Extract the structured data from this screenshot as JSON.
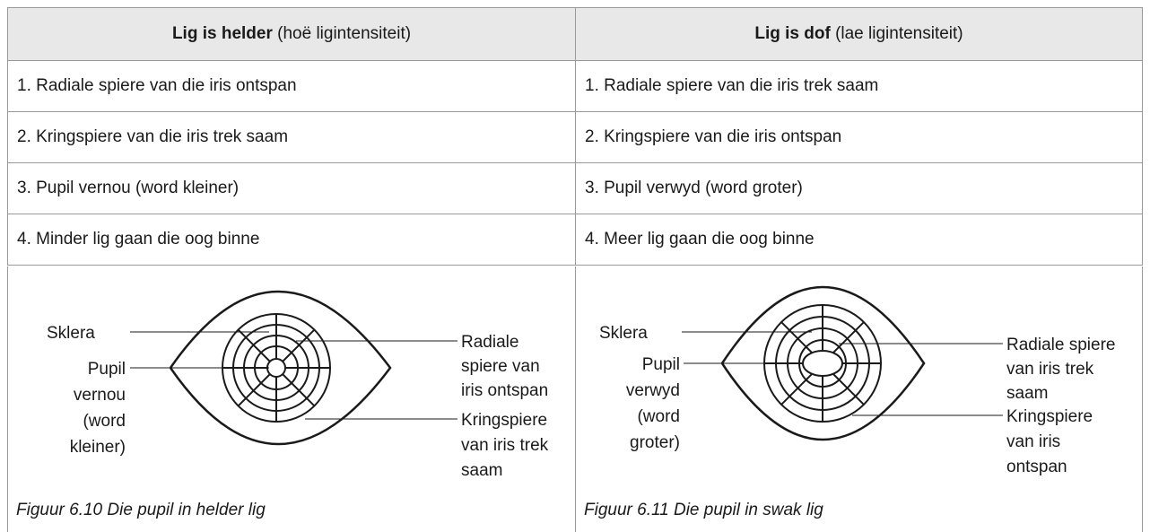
{
  "header": {
    "columns": [
      {
        "main": "Lig is helder",
        "note": "(hoë ligintensiteit)"
      },
      {
        "main": "Lig is dof",
        "note": "(lae ligintensiteit)"
      }
    ]
  },
  "table": {
    "rows": [
      [
        "1. Radiale spiere van die iris ontspan",
        "1. Radiale spiere van die iris trek saam"
      ],
      [
        "2. Kringspiere van die iris trek saam",
        "2. Kringspiere van die iris ontspan"
      ],
      [
        "3. Pupil vernou (word kleiner)",
        "3. Pupil verwyd (word groter)"
      ],
      [
        "4. Minder lig gaan die oog binne",
        "4. Meer lig gaan die oog binne"
      ]
    ]
  },
  "figures": [
    {
      "sklera": "Sklera",
      "pupil": [
        "Pupil",
        "vernou",
        "(word",
        "kleiner)"
      ],
      "radial": [
        "Radiale",
        "spiere van",
        "iris ontspan"
      ],
      "ring": [
        "Kringspiere",
        "van iris trek",
        "saam"
      ],
      "caption": "Figuur 6.10 Die pupil in helder lig"
    },
    {
      "sklera": "Sklera",
      "pupil": [
        "Pupil",
        "verwyd",
        "(word",
        "groter)"
      ],
      "radial": [
        "Radiale spiere",
        "van iris trek",
        "saam"
      ],
      "ring": [
        "Kringspiere",
        "van iris",
        "ontspan"
      ],
      "caption": "Figuur 6.11 Die pupil in swak lig"
    }
  ]
}
